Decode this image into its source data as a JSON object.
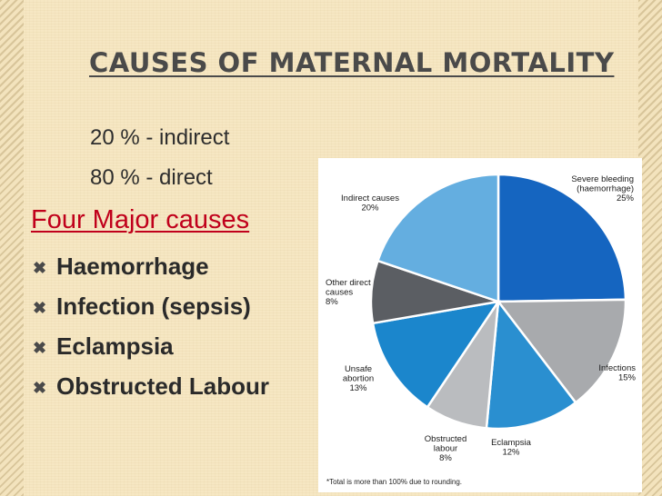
{
  "slide": {
    "title": "CAUSES OF MATERNAL MORTALITY",
    "line1": "20 % - indirect",
    "line2": "80 % - direct",
    "heading": "Four Major causes",
    "bullets": [
      "Haemorrhage",
      "Infection (sepsis)",
      "Eclampsia",
      "Obstructed Labour"
    ],
    "bullet_icon": "x-mark-icon"
  },
  "chart_data": {
    "type": "pie",
    "slices": [
      {
        "label": [
          "Severe bleeding",
          "(haemorrhage)",
          "25%"
        ],
        "value": 25,
        "color": "#1565c0"
      },
      {
        "label": [
          "Infections",
          "15%"
        ],
        "value": 15,
        "color": "#a8aaad"
      },
      {
        "label": [
          "Eclampsia",
          "12%"
        ],
        "value": 12,
        "color": "#2a8fd0"
      },
      {
        "label": [
          "Obstructed",
          "labour",
          "8%"
        ],
        "value": 8,
        "color": "#babcbf"
      },
      {
        "label": [
          "Unsafe",
          "abortion",
          "13%"
        ],
        "value": 13,
        "color": "#1b86cc"
      },
      {
        "label": [
          "Other direct",
          "causes",
          "8%"
        ],
        "value": 8,
        "color": "#5b5e63"
      },
      {
        "label": [
          "Indirect causes",
          "20%"
        ],
        "value": 20,
        "color": "#64aee0"
      }
    ],
    "start_angle_deg": 0,
    "direction": "clockwise",
    "footnote": "*Total is more than 100% due to rounding."
  }
}
